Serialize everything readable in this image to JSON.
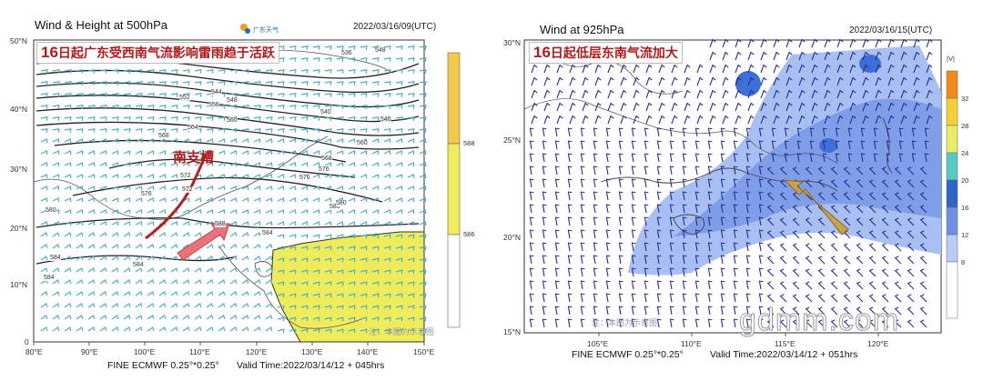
{
  "left_panel": {
    "title": "Wind & Height at 500hPa",
    "time": "2022/03/16/09(UTC)",
    "logo_text": "广东天气",
    "banner_num": "16",
    "banner_text": "日起广东受西南气流影响雷雨趋于活跃",
    "trough_label": "南支槽",
    "footer_model": "FINE ECMWF 0.25°*0.25°",
    "footer_valid": "Valid Time:2022/03/14/12 + 045hrs",
    "watermark_note": "注：本图为示意图",
    "lat_labels": [
      "50°N",
      "40°N",
      "30°N",
      "20°N",
      "10°N",
      "0"
    ],
    "lon_labels": [
      "80°E",
      "90°E",
      "100°E",
      "110°E",
      "120°E",
      "130°E",
      "140°E",
      "150°E"
    ],
    "contour_labels": [
      "536",
      "544",
      "548",
      "552",
      "556",
      "560",
      "564",
      "568",
      "572",
      "576",
      "580",
      "584",
      "588",
      "540",
      "546",
      "560",
      "568",
      "576",
      "580",
      "584",
      "584",
      "572",
      "576",
      "584",
      "580",
      "548"
    ],
    "colorbar_labels": [
      "588",
      "586"
    ],
    "colors": {
      "fill_yellow": "#eeec5a",
      "colorbar_top": "#f2c84a",
      "trough": "#b51f1f",
      "arrow": "#e8737a",
      "barb": "#4ab0c4"
    }
  },
  "right_panel": {
    "title": "Wind at 925hPa",
    "time": "2022/03/16/15(UTC)",
    "banner_num": "16",
    "banner_text": "日起低层东南气流加大",
    "footer_model": "FINE ECMWF 0.25°*0.25°",
    "footer_valid": "Valid Time:2022/03/14/12 + 051hrs",
    "watermark_note": "注：本图为示意图",
    "lat_labels": [
      "30°N",
      "25°N",
      "20°N",
      "15°N"
    ],
    "lon_labels": [
      "105°E",
      "110°E",
      "115°E",
      "120°E"
    ],
    "colorbar_unit": "|V|",
    "colorbar_labels": [
      "32",
      "28",
      "24",
      "20",
      "16",
      "12",
      "8"
    ],
    "colors": {
      "wind_light": "#a8bff2",
      "wind_mid": "#7f9ee8",
      "wind_dark": "#3d6fd6",
      "arrow": "#c9a24a",
      "barb": "#2a2a9a"
    }
  },
  "watermark": "gdmm.com"
}
